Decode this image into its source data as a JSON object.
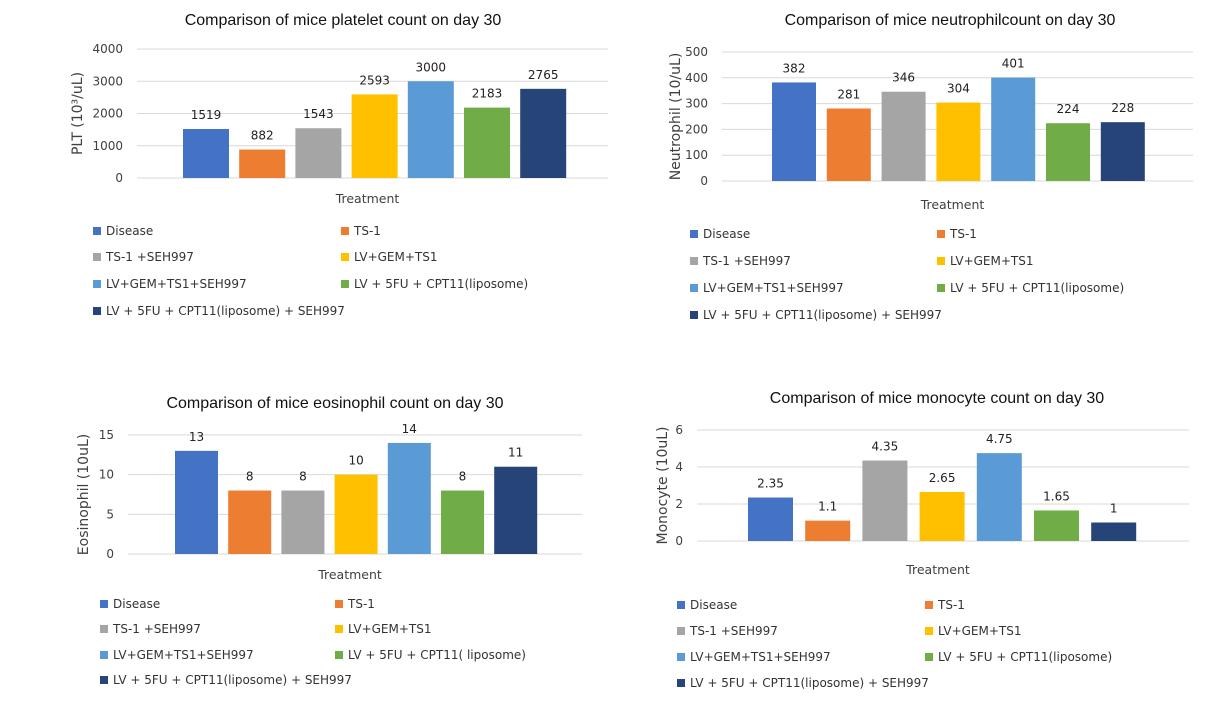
{
  "colors": [
    "#4472C4",
    "#ED7D31",
    "#A5A5A5",
    "#FFC000",
    "#5B9BD5",
    "#70AD47",
    "#264478"
  ],
  "chart_data": [
    {
      "type": "bar",
      "title": "Comparison of mice platelet count on day 30",
      "xlabel": "Treatment",
      "ylabel": "PLT (10³/uL)",
      "ylim": [
        0,
        4000
      ],
      "yticks": [
        0,
        1000,
        2000,
        3000,
        4000
      ],
      "categories": [
        "Disease",
        "TS-1",
        "TS-1 +SEH997",
        "LV+GEM+TS1",
        "LV+GEM+TS1+SEH997",
        "LV + 5FU + CPT11(liposome)",
        "LV + 5FU + CPT11(liposome) + SEH997"
      ],
      "values": [
        1519,
        882,
        1543,
        2593,
        3000,
        2183,
        2765
      ],
      "data_labels": [
        "1519",
        "882",
        "1543",
        "2593",
        "3000",
        "2183",
        "2765"
      ],
      "legend": "bottom",
      "grid": true
    },
    {
      "type": "bar",
      "title": "Comparison of mice neutrophilcount on day 30",
      "xlabel": "Treatment",
      "ylabel": "Neutrophil (10/uL)",
      "ylim": [
        0,
        500
      ],
      "yticks": [
        0,
        100,
        200,
        300,
        400,
        500
      ],
      "categories": [
        "Disease",
        "TS-1",
        "TS-1 +SEH997",
        "LV+GEM+TS1",
        "LV+GEM+TS1+SEH997",
        "LV + 5FU + CPT11(liposome)",
        "LV + 5FU + CPT11(liposome) + SEH997"
      ],
      "values": [
        382,
        281,
        346,
        304,
        401,
        224,
        228
      ],
      "data_labels": [
        "382",
        "281",
        "346",
        "304",
        "401",
        "224",
        "228"
      ],
      "legend": "bottom",
      "grid": true
    },
    {
      "type": "bar",
      "title": "Comparison of mice eosinophil count on day 30",
      "xlabel": "Treatment",
      "ylabel": "Eosinophil (10uL)",
      "ylim": [
        0,
        15
      ],
      "yticks": [
        0,
        5,
        10,
        15
      ],
      "categories": [
        "Disease",
        "TS-1",
        "TS-1 +SEH997",
        "LV+GEM+TS1",
        "LV+GEM+TS1+SEH997",
        "LV + 5FU + CPT11( liposome)",
        "LV + 5FU + CPT11(liposome) + SEH997"
      ],
      "values": [
        13,
        8,
        8,
        10,
        14,
        8,
        11
      ],
      "data_labels": [
        "13",
        "8",
        "8",
        "10",
        "14",
        "8",
        "11"
      ],
      "legend": "bottom",
      "grid": true
    },
    {
      "type": "bar",
      "title": "Comparison of mice monocyte count on day 30",
      "xlabel": "Treatment",
      "ylabel": "Monocyte (10uL)",
      "ylim": [
        0,
        6
      ],
      "yticks": [
        0,
        2,
        4,
        6
      ],
      "categories": [
        "Disease",
        "TS-1",
        "TS-1 +SEH997",
        "LV+GEM+TS1",
        "LV+GEM+TS1+SEH997",
        "LV + 5FU + CPT11(liposome)",
        "LV + 5FU + CPT11(liposome) + SEH997"
      ],
      "values": [
        2.35,
        1.1,
        4.35,
        2.65,
        4.75,
        1.65,
        1
      ],
      "data_labels": [
        "2.35",
        "1.1",
        "4.35",
        "2.65",
        "4.75",
        "1.65",
        "1"
      ],
      "legend": "bottom",
      "grid": true
    }
  ]
}
